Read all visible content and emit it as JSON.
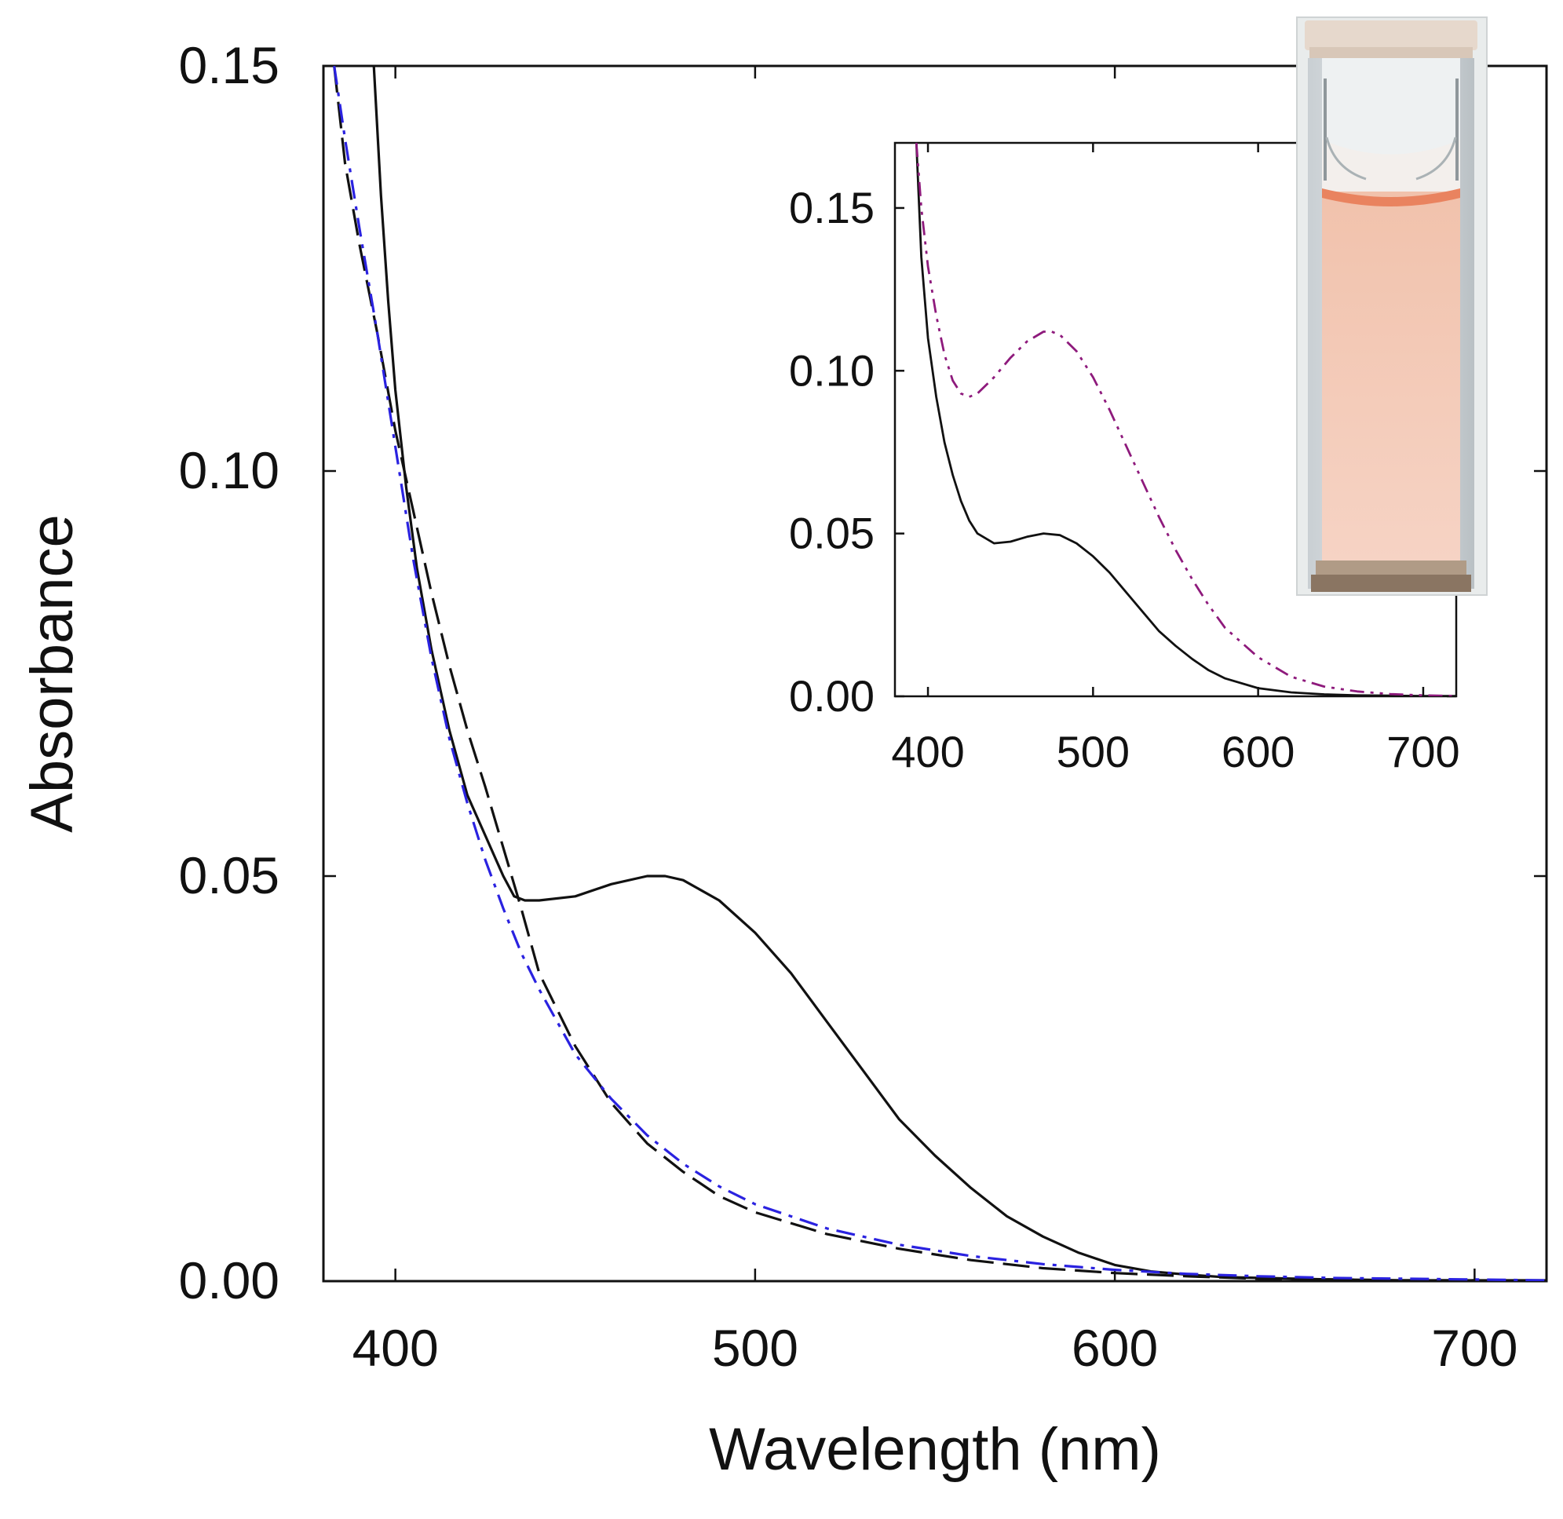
{
  "colors": {
    "black_series": "#111111",
    "blue_series": "#2a22e0",
    "purple_series": "#8e1a7c",
    "cuvette_liquid": "#f3c7b3",
    "meniscus": "#e9835f"
  },
  "photo": {
    "icon": "cuvette-photo-icon"
  },
  "chart_data": [
    {
      "id": "main",
      "type": "line",
      "title": "",
      "xlabel": "Wavelength (nm)",
      "ylabel": "Absorbance",
      "xlim": [
        380,
        720
      ],
      "ylim": [
        0,
        0.15
      ],
      "xticks": [
        400,
        500,
        600,
        700
      ],
      "yticks": [
        0.0,
        0.05,
        0.1,
        0.15
      ],
      "xtick_labels": [
        "400",
        "500",
        "600",
        "700"
      ],
      "ytick_labels": [
        "0.00",
        "0.05",
        "0.10",
        "0.15"
      ],
      "grid": false,
      "series": [
        {
          "name": "solid",
          "style": "solid",
          "color": "#111111",
          "x": [
            394,
            396,
            398,
            400,
            403,
            406,
            410,
            415,
            420,
            425,
            430,
            433,
            436,
            440,
            450,
            460,
            470,
            475,
            480,
            490,
            500,
            510,
            520,
            530,
            540,
            550,
            560,
            570,
            580,
            590,
            600,
            610,
            620,
            630,
            640,
            650,
            660,
            680,
            700,
            720
          ],
          "y": [
            0.15,
            0.134,
            0.121,
            0.11,
            0.098,
            0.088,
            0.078,
            0.068,
            0.06,
            0.055,
            0.05,
            0.0475,
            0.047,
            0.047,
            0.0475,
            0.049,
            0.05,
            0.05,
            0.0495,
            0.047,
            0.043,
            0.038,
            0.032,
            0.026,
            0.02,
            0.0155,
            0.0115,
            0.008,
            0.0055,
            0.0035,
            0.002,
            0.0012,
            0.0008,
            0.0005,
            0.0004,
            0.0003,
            0.0002,
            0.0001,
            0.0001,
            0.0001
          ]
        },
        {
          "name": "dashed",
          "style": "dashed",
          "color": "#111111",
          "x": [
            383,
            386,
            390,
            395,
            400,
            405,
            410,
            415,
            420,
            425,
            430,
            435,
            440,
            450,
            460,
            470,
            480,
            490,
            500,
            520,
            540,
            560,
            580,
            600,
            620,
            640,
            660,
            680,
            700
          ],
          "y": [
            0.15,
            0.138,
            0.128,
            0.117,
            0.105,
            0.095,
            0.085,
            0.076,
            0.068,
            0.061,
            0.0535,
            0.046,
            0.038,
            0.029,
            0.022,
            0.017,
            0.0135,
            0.0105,
            0.0085,
            0.0058,
            0.004,
            0.0026,
            0.0016,
            0.001,
            0.0006,
            0.0003,
            0.0002,
            0.0001,
            0.0001
          ]
        },
        {
          "name": "dash-dot (blue)",
          "style": "dashdot",
          "color": "#2a22e0",
          "x": [
            383,
            386,
            390,
            395,
            400,
            405,
            410,
            415,
            420,
            425,
            430,
            435,
            440,
            450,
            460,
            470,
            480,
            490,
            500,
            520,
            540,
            560,
            580,
            600,
            620,
            640,
            660,
            680,
            700,
            720
          ],
          "y": [
            0.15,
            0.141,
            0.13,
            0.117,
            0.103,
            0.089,
            0.077,
            0.067,
            0.059,
            0.052,
            0.046,
            0.0405,
            0.036,
            0.028,
            0.0225,
            0.018,
            0.0145,
            0.0117,
            0.0095,
            0.0065,
            0.0045,
            0.0031,
            0.0021,
            0.0014,
            0.0009,
            0.0006,
            0.0004,
            0.0003,
            0.0002,
            0.0001
          ]
        }
      ]
    },
    {
      "id": "inset",
      "type": "line",
      "title": "",
      "xlabel": "",
      "ylabel": "",
      "xlim": [
        380,
        720
      ],
      "ylim": [
        0,
        0.17
      ],
      "xticks": [
        400,
        500,
        600,
        700
      ],
      "yticks": [
        0.0,
        0.05,
        0.1,
        0.15
      ],
      "xtick_labels": [
        "400",
        "500",
        "600",
        "700"
      ],
      "ytick_labels": [
        "0.00",
        "0.05",
        "0.10",
        "0.15"
      ],
      "grid": false,
      "series": [
        {
          "name": "solid",
          "style": "solid",
          "color": "#111111",
          "x": [
            393,
            396,
            400,
            405,
            410,
            415,
            420,
            425,
            430,
            440,
            450,
            460,
            470,
            480,
            490,
            500,
            510,
            520,
            530,
            540,
            550,
            560,
            570,
            580,
            600,
            620,
            640,
            660,
            680,
            700,
            720
          ],
          "y": [
            0.17,
            0.135,
            0.11,
            0.092,
            0.078,
            0.068,
            0.06,
            0.054,
            0.05,
            0.047,
            0.0475,
            0.049,
            0.05,
            0.0495,
            0.047,
            0.043,
            0.038,
            0.032,
            0.026,
            0.02,
            0.0155,
            0.0115,
            0.008,
            0.0055,
            0.0025,
            0.0012,
            0.0006,
            0.0003,
            0.0002,
            0.0001,
            0.0001
          ]
        },
        {
          "name": "dash-dot-dot (purple)",
          "style": "dashdotdot",
          "color": "#8e1a7c",
          "x": [
            393,
            396,
            400,
            405,
            410,
            415,
            420,
            425,
            430,
            440,
            450,
            460,
            470,
            475,
            480,
            490,
            500,
            510,
            520,
            530,
            540,
            550,
            560,
            570,
            580,
            600,
            620,
            640,
            660,
            680,
            700,
            720
          ],
          "y": [
            0.17,
            0.15,
            0.132,
            0.117,
            0.105,
            0.097,
            0.093,
            0.092,
            0.093,
            0.098,
            0.104,
            0.109,
            0.112,
            0.112,
            0.111,
            0.106,
            0.098,
            0.088,
            0.077,
            0.066,
            0.055,
            0.045,
            0.036,
            0.028,
            0.021,
            0.012,
            0.006,
            0.003,
            0.0015,
            0.0007,
            0.0003,
            0.0001
          ]
        }
      ]
    }
  ]
}
